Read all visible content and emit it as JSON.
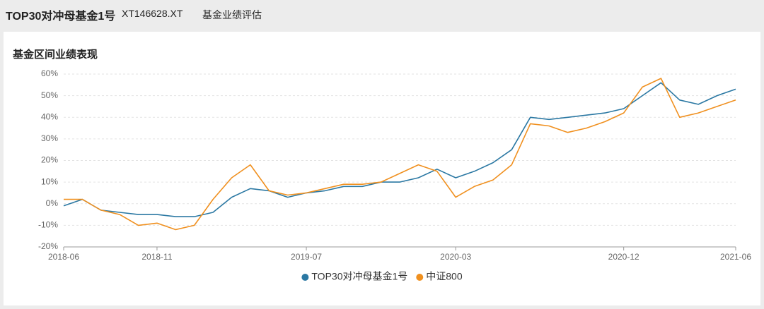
{
  "header": {
    "title": "TOP30对冲母基金1号",
    "code": "XT146628.XT",
    "subtitle": "基金业绩评估"
  },
  "chart_data": {
    "type": "line",
    "title": "基金区间业绩表现",
    "x": [
      "2018-06",
      "2018-07",
      "2018-08",
      "2018-09",
      "2018-10",
      "2018-11",
      "2018-12",
      "2019-01",
      "2019-02",
      "2019-03",
      "2019-04",
      "2019-05",
      "2019-06",
      "2019-07",
      "2019-08",
      "2019-09",
      "2019-10",
      "2019-11",
      "2019-12",
      "2020-01",
      "2020-02",
      "2020-03",
      "2020-04",
      "2020-05",
      "2020-06",
      "2020-07",
      "2020-08",
      "2020-09",
      "2020-10",
      "2020-11",
      "2020-12",
      "2021-01",
      "2021-02",
      "2021-03",
      "2021-04",
      "2021-05",
      "2021-06"
    ],
    "xticks": [
      "2018-06",
      "2018-11",
      "2019-07",
      "2020-03",
      "2020-12",
      "2021-06"
    ],
    "series": [
      {
        "name": "TOP30对冲母基金1号",
        "color": "#2b78a3",
        "values": [
          -1,
          2,
          -3,
          -4,
          -5,
          -5,
          -6,
          -6,
          -4,
          3,
          7,
          6,
          3,
          5,
          6,
          8,
          8,
          10,
          10,
          12,
          16,
          12,
          15,
          19,
          25,
          40,
          39,
          40,
          41,
          42,
          44,
          50,
          56,
          48,
          46,
          50,
          53
        ]
      },
      {
        "name": "中证800",
        "color": "#f0901f",
        "values": [
          2,
          2,
          -3,
          -5,
          -10,
          -9,
          -12,
          -10,
          2,
          12,
          18,
          6,
          4,
          5,
          7,
          9,
          9,
          10,
          14,
          18,
          15,
          3,
          8,
          11,
          18,
          37,
          36,
          33,
          35,
          38,
          42,
          54,
          58,
          40,
          42,
          45,
          48
        ]
      }
    ],
    "ylim": [
      -20,
      60
    ],
    "yticks": [
      {
        "value": -20,
        "label": "-20%"
      },
      {
        "value": -10,
        "label": "-10%"
      },
      {
        "value": 0,
        "label": "0%"
      },
      {
        "value": 10,
        "label": "10%"
      },
      {
        "value": 20,
        "label": "20%"
      },
      {
        "value": 30,
        "label": "30%"
      },
      {
        "value": 40,
        "label": "40%"
      },
      {
        "value": 50,
        "label": "50%"
      },
      {
        "value": 60,
        "label": "60%"
      }
    ],
    "grid": true,
    "legend": "bottom"
  }
}
